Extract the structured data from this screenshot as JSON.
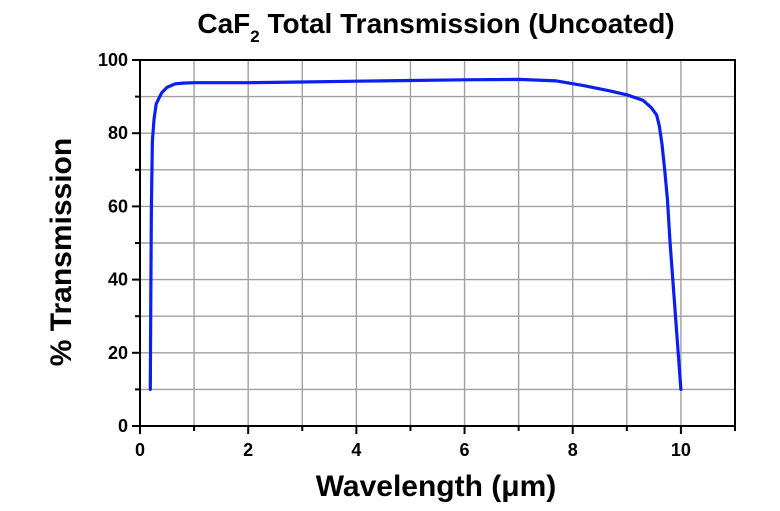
{
  "chart_data": {
    "type": "line",
    "title": {
      "pre": "CaF",
      "sub": "2",
      "post": " Total Transmission (Uncoated)"
    },
    "xlabel": "Wavelength (μm)",
    "ylabel": "% Transmission",
    "xlim": [
      0,
      11
    ],
    "ylim": [
      0,
      100
    ],
    "x_ticks": [
      "0",
      "2",
      "4",
      "6",
      "8",
      "10"
    ],
    "y_ticks": [
      "0",
      "20",
      "40",
      "60",
      "80",
      "100"
    ],
    "grid": true,
    "legend": "none",
    "series": [
      {
        "color": "#0a1ff0",
        "x": [
          0.19,
          0.2,
          0.21,
          0.23,
          0.26,
          0.3,
          0.4,
          0.5,
          0.65,
          0.8,
          1.0,
          2.0,
          3.0,
          4.0,
          5.0,
          6.0,
          7.0,
          7.7,
          8.2,
          8.7,
          9.0,
          9.3,
          9.45,
          9.55,
          9.6,
          9.65,
          9.7,
          9.75,
          9.8,
          9.85,
          9.9,
          9.95,
          10.0
        ],
        "y": [
          10,
          35,
          60,
          78,
          84,
          88,
          91,
          92.5,
          93.5,
          93.7,
          93.8,
          93.8,
          94.0,
          94.2,
          94.4,
          94.6,
          94.7,
          94.3,
          93.0,
          91.5,
          90.5,
          89.0,
          87.0,
          85.0,
          82.0,
          77.0,
          70.0,
          62.0,
          50.0,
          40.0,
          30.0,
          20.0,
          10.0
        ]
      }
    ]
  }
}
